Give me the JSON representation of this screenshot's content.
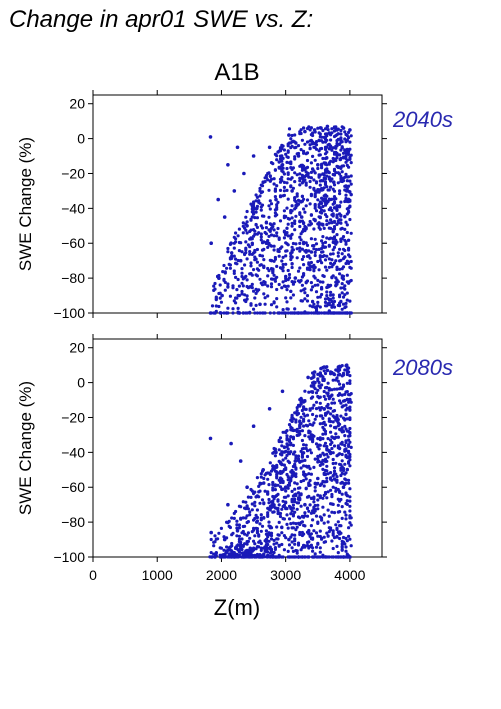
{
  "figure": {
    "title": "Change in apr01 SWE vs. Z:",
    "scenario": "A1B",
    "xlabel": "Z(m)"
  },
  "colors": {
    "points": "#1a1ab8",
    "period_label": "#2929b0",
    "axis": "#000000"
  },
  "chart_data": [
    {
      "type": "scatter",
      "period": "2040s",
      "ylabel": "SWE Change (%)",
      "xlim": [
        0,
        4500
      ],
      "ylim": [
        -100,
        25
      ],
      "xticks": [
        0,
        1000,
        2000,
        3000,
        4000
      ],
      "yticks": [
        -100,
        -80,
        -60,
        -40,
        -20,
        0,
        20
      ],
      "x_tick_labels_shown": false,
      "grid": false,
      "points_summary": {
        "x_min": 1800,
        "x_max": 4020,
        "note": "dense vertical columns of points spanning -100 to about +7; densest between 2800 and 4000 m"
      },
      "points": [
        [
          1830,
          1
        ],
        [
          1840,
          -60
        ],
        [
          1830,
          -100
        ],
        [
          1900,
          -100
        ],
        [
          1950,
          -35
        ],
        [
          1960,
          -80
        ],
        [
          1990,
          -100
        ],
        [
          2010,
          -90
        ],
        [
          2050,
          -45
        ],
        [
          2080,
          -100
        ],
        [
          2100,
          -15
        ],
        [
          2150,
          -60
        ],
        [
          2200,
          -30
        ],
        [
          2250,
          -5
        ],
        [
          2280,
          -100
        ],
        [
          2300,
          -70
        ],
        [
          2350,
          -20
        ],
        [
          2400,
          -50
        ],
        [
          2450,
          -85
        ],
        [
          2500,
          -10
        ],
        [
          2550,
          -40
        ],
        [
          2600,
          -95
        ],
        [
          2650,
          -25
        ],
        [
          2700,
          -60
        ],
        [
          2750,
          -5
        ],
        [
          2800,
          -75
        ],
        [
          2850,
          -35
        ],
        [
          2900,
          -100
        ],
        [
          2950,
          -15
        ],
        [
          3000,
          -55
        ],
        [
          3050,
          2
        ],
        [
          3100,
          -30
        ],
        [
          3150,
          -80
        ],
        [
          3200,
          -10
        ],
        [
          3250,
          -45
        ],
        [
          3300,
          4
        ],
        [
          3350,
          -20
        ],
        [
          3400,
          -65
        ],
        [
          3450,
          5
        ],
        [
          3500,
          -15
        ],
        [
          3550,
          6
        ],
        [
          3600,
          -35
        ],
        [
          3650,
          7
        ],
        [
          3700,
          -5
        ],
        [
          3750,
          -25
        ],
        [
          3800,
          5
        ],
        [
          3850,
          -12
        ],
        [
          3900,
          6
        ],
        [
          3950,
          -30
        ],
        [
          4000,
          5
        ],
        [
          4000,
          -100
        ]
      ]
    },
    {
      "type": "scatter",
      "period": "2080s",
      "ylabel": "SWE Change (%)",
      "xlim": [
        0,
        4500
      ],
      "ylim": [
        -100,
        25
      ],
      "xticks": [
        0,
        1000,
        2000,
        3000,
        4000
      ],
      "yticks": [
        -100,
        -80,
        -60,
        -40,
        -20,
        0,
        20
      ],
      "x_tick_labels_shown": true,
      "grid": false,
      "points_summary": {
        "x_min": 1800,
        "x_max": 4020,
        "note": "points concentrated near -100 below 2800 m; vertical columns up to about +10 above 3200 m"
      },
      "points": [
        [
          1830,
          -32
        ],
        [
          1840,
          -86
        ],
        [
          1850,
          -100
        ],
        [
          1900,
          -100
        ],
        [
          1990,
          -100
        ],
        [
          2050,
          -90
        ],
        [
          2100,
          -70
        ],
        [
          2150,
          -35
        ],
        [
          2200,
          -100
        ],
        [
          2250,
          -85
        ],
        [
          2300,
          -45
        ],
        [
          2350,
          -100
        ],
        [
          2400,
          -60
        ],
        [
          2450,
          -95
        ],
        [
          2500,
          -25
        ],
        [
          2550,
          -80
        ],
        [
          2600,
          -100
        ],
        [
          2650,
          -50
        ],
        [
          2700,
          -90
        ],
        [
          2750,
          -15
        ],
        [
          2800,
          -100
        ],
        [
          2850,
          -40
        ],
        [
          2900,
          -75
        ],
        [
          2950,
          -5
        ],
        [
          3000,
          -60
        ],
        [
          3050,
          -90
        ],
        [
          3100,
          -20
        ],
        [
          3150,
          -45
        ],
        [
          3200,
          -100
        ],
        [
          3250,
          -10
        ],
        [
          3300,
          -70
        ],
        [
          3350,
          3
        ],
        [
          3400,
          -30
        ],
        [
          3450,
          6
        ],
        [
          3500,
          -55
        ],
        [
          3550,
          8
        ],
        [
          3600,
          -15
        ],
        [
          3650,
          7
        ],
        [
          3700,
          -40
        ],
        [
          3750,
          5
        ],
        [
          3800,
          -20
        ],
        [
          3850,
          9
        ],
        [
          3900,
          -60
        ],
        [
          3950,
          10
        ],
        [
          4000,
          -10
        ],
        [
          4000,
          -100
        ]
      ]
    }
  ]
}
